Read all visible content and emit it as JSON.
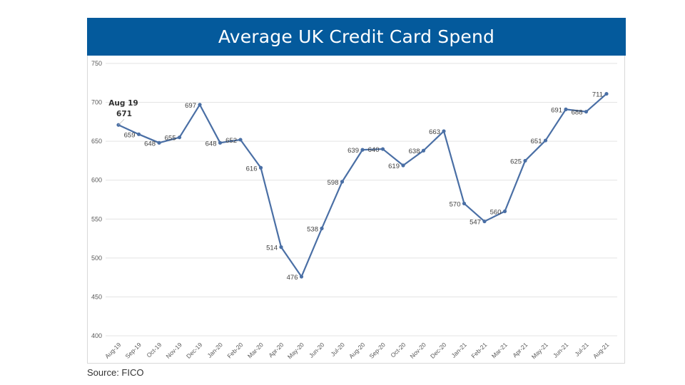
{
  "chart_data": {
    "type": "line",
    "title": "Average UK Credit Card Spend",
    "source": "Source: FICO",
    "xlabel": "",
    "ylabel": "",
    "ylim": [
      400,
      750
    ],
    "yticks": [
      400,
      450,
      500,
      550,
      600,
      650,
      700,
      750
    ],
    "grid": true,
    "line_color": "#4a6fa5",
    "header_color": "#045a9c",
    "categories": [
      "Aug-19",
      "Sep-19",
      "Oct-19",
      "Nov-19",
      "Dec-19",
      "Jan-20",
      "Feb-20",
      "Mar-20",
      "Apr-20",
      "May-20",
      "Jun-20",
      "Jul-20",
      "Aug-20",
      "Sep-20",
      "Oct-20",
      "Nov-20",
      "Dec-20",
      "Jan-21",
      "Feb-21",
      "Mar-21",
      "Apr-21",
      "May-21",
      "Jun-21",
      "Jul-21",
      "Aug-21"
    ],
    "values": [
      671,
      659,
      648,
      655,
      697,
      648,
      652,
      616,
      514,
      476,
      538,
      598,
      639,
      640,
      619,
      638,
      663,
      570,
      547,
      560,
      625,
      651,
      691,
      688,
      711
    ],
    "annotation": {
      "line1": "Aug 19",
      "line2": "671"
    }
  }
}
